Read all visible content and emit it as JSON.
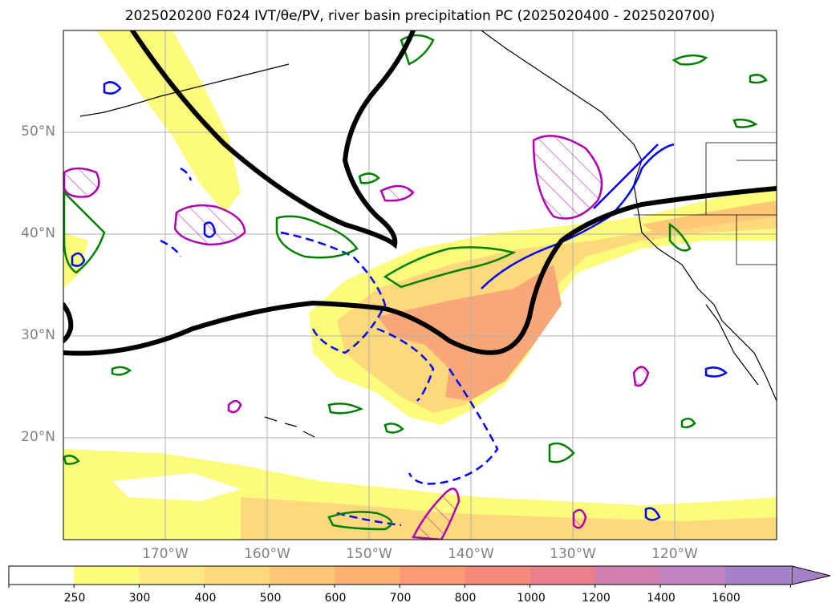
{
  "title": "2025020200 F024 IVT/θe/PV, river basin precipitation PC (2025020400 - 2025020700)",
  "lat_labels": [
    "50°N",
    "40°N",
    "30°N",
    "20°N"
  ],
  "lon_labels": [
    "170°W",
    "160°W",
    "150°W",
    "140°W",
    "130°W",
    "120°W"
  ],
  "colorbar": {
    "ticks": [
      "250",
      "300",
      "400",
      "500",
      "600",
      "700",
      "800",
      "1000",
      "1200",
      "1400",
      "1600"
    ],
    "colors": [
      "#ffffff",
      "#fdfb7c",
      "#fde884",
      "#fdd97b",
      "#fdc776",
      "#fdb272",
      "#fd9c74",
      "#f88a79",
      "#e98089",
      "#d07fb0",
      "#bf85c2",
      "#a581c9"
    ]
  },
  "colors": {
    "ivt_fill_low": "#fdfb7c",
    "ivt_fill_mid": "#fdd97b",
    "ivt_fill_high": "#f8a878",
    "pv_contour": "#000000",
    "theta_e_contour": "#0000ff",
    "precip_pc_contour": "#008000",
    "pv_hatch_contour": "#b000b0",
    "grid": "#b0b0b0",
    "coastline": "#000000"
  }
}
